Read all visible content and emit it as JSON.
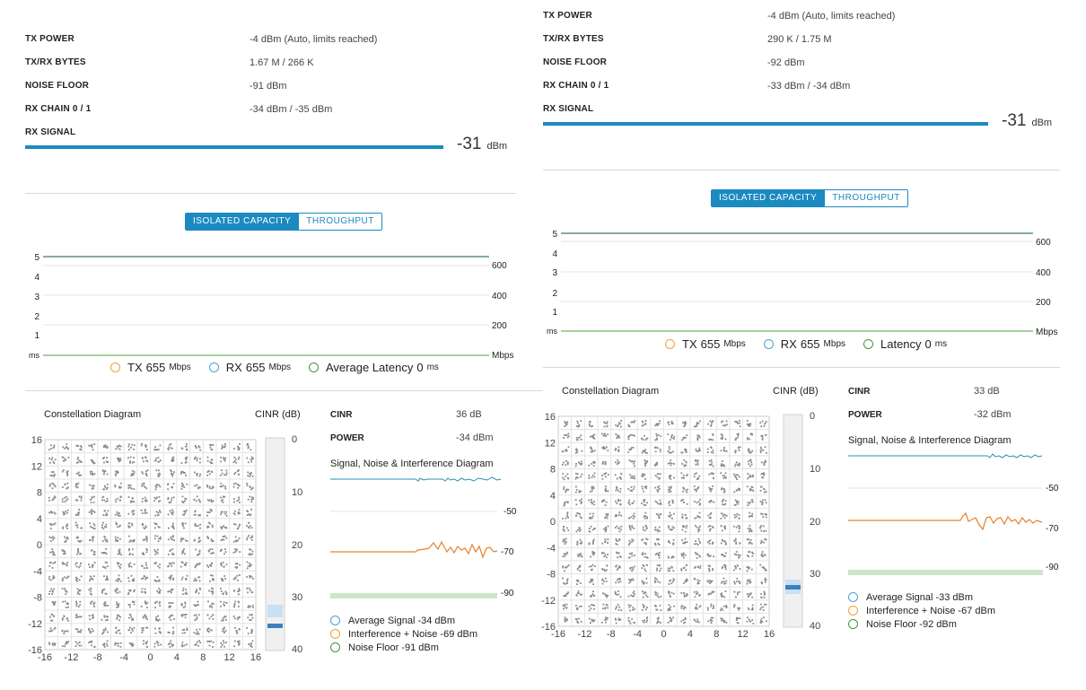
{
  "panels": [
    {
      "stats": [
        {
          "label": "TX POWER",
          "value": "-4 dBm (Auto, limits reached)"
        },
        {
          "label": "TX/RX BYTES",
          "value": "1.67 M / 266 K"
        },
        {
          "label": "NOISE FLOOR",
          "value": "-91 dBm"
        },
        {
          "label": "RX CHAIN 0 / 1",
          "value": "-34 dBm / -35 dBm"
        },
        {
          "label": "RX SIGNAL",
          "value": ""
        }
      ],
      "rx_signal": {
        "value": "-31",
        "unit": "dBm"
      },
      "toggle": {
        "active": "ISOLATED CAPACITY",
        "inactive": "THROUGHPUT"
      },
      "capacity_chart": {
        "left_ticks": [
          "5",
          "4",
          "3",
          "2",
          "1",
          "ms"
        ],
        "right_ticks": [
          "600",
          "400",
          "200",
          "Mbps"
        ]
      },
      "legend": {
        "tx": {
          "label": "TX",
          "value": "655",
          "unit": "Mbps"
        },
        "rx": {
          "label": "RX",
          "value": "655",
          "unit": "Mbps"
        },
        "latency": {
          "label": "Average Latency",
          "value": "0",
          "unit": "ms"
        }
      },
      "constellation": {
        "title": "Constellation Diagram",
        "cinr_label": "CINR (dB)",
        "axis_ticks": [
          "16",
          "12",
          "8",
          "4",
          "0",
          "-4",
          "-8",
          "-12",
          "-16"
        ],
        "x_ticks": [
          "-16",
          "-12",
          "-8",
          "-4",
          "0",
          "4",
          "8",
          "12",
          "16"
        ],
        "cinr_ticks": [
          "0",
          "10",
          "20",
          "30",
          "40"
        ]
      },
      "metrics": [
        {
          "label": "CINR",
          "value": "36 dB"
        },
        {
          "label": "POWER",
          "value": "-34 dBm"
        }
      ],
      "sni": {
        "title": "Signal, Noise & Interference Diagram",
        "ticks": [
          "-50",
          "-70",
          "-90"
        ],
        "legend": [
          "Average Signal -34 dBm",
          "Interference + Noise -69 dBm",
          "Noise Floor -91 dBm"
        ]
      }
    },
    {
      "stats": [
        {
          "label": "TX POWER",
          "value": "-4 dBm (Auto, limits reached)"
        },
        {
          "label": "TX/RX BYTES",
          "value": "290 K / 1.75 M"
        },
        {
          "label": "NOISE FLOOR",
          "value": "-92 dBm"
        },
        {
          "label": "RX CHAIN 0 / 1",
          "value": "-33 dBm / -34 dBm"
        },
        {
          "label": "RX SIGNAL",
          "value": ""
        }
      ],
      "rx_signal": {
        "value": "-31",
        "unit": "dBm"
      },
      "toggle": {
        "active": "ISOLATED CAPACITY",
        "inactive": "THROUGHPUT"
      },
      "capacity_chart": {
        "left_ticks": [
          "5",
          "4",
          "3",
          "2",
          "1",
          "ms"
        ],
        "right_ticks": [
          "600",
          "400",
          "200",
          "Mbps"
        ]
      },
      "legend": {
        "tx": {
          "label": "TX",
          "value": "655",
          "unit": "Mbps"
        },
        "rx": {
          "label": "RX",
          "value": "655",
          "unit": "Mbps"
        },
        "latency": {
          "label": "Latency",
          "value": "0",
          "unit": "ms"
        }
      },
      "constellation": {
        "title": "Constellation Diagram",
        "cinr_label": "CINR (dB)",
        "axis_ticks": [
          "16",
          "12",
          "8",
          "4",
          "0",
          "-4",
          "-8",
          "-12",
          "-16"
        ],
        "x_ticks": [
          "-16",
          "-12",
          "-8",
          "-4",
          "0",
          "4",
          "8",
          "12",
          "16"
        ],
        "cinr_ticks": [
          "0",
          "10",
          "20",
          "30",
          "40"
        ]
      },
      "metrics": [
        {
          "label": "CINR",
          "value": "33 dB"
        },
        {
          "label": "POWER",
          "value": "-32 dBm"
        }
      ],
      "sni": {
        "title": "Signal, Noise & Interference Diagram",
        "ticks": [
          "-50",
          "-70",
          "-90"
        ],
        "legend": [
          "Average Signal -33 dBm",
          "Interference + Noise -67 dBm",
          "Noise Floor -92 dBm"
        ]
      }
    }
  ],
  "colors": {
    "accent": "#1b8ac0",
    "tx": "#f0a030",
    "rx": "#4aa0d8",
    "latency": "#3c9a3c",
    "signal_line": "#2a8fb8",
    "interference_line": "#e8802a",
    "noise_band": "#cfe5c8"
  }
}
